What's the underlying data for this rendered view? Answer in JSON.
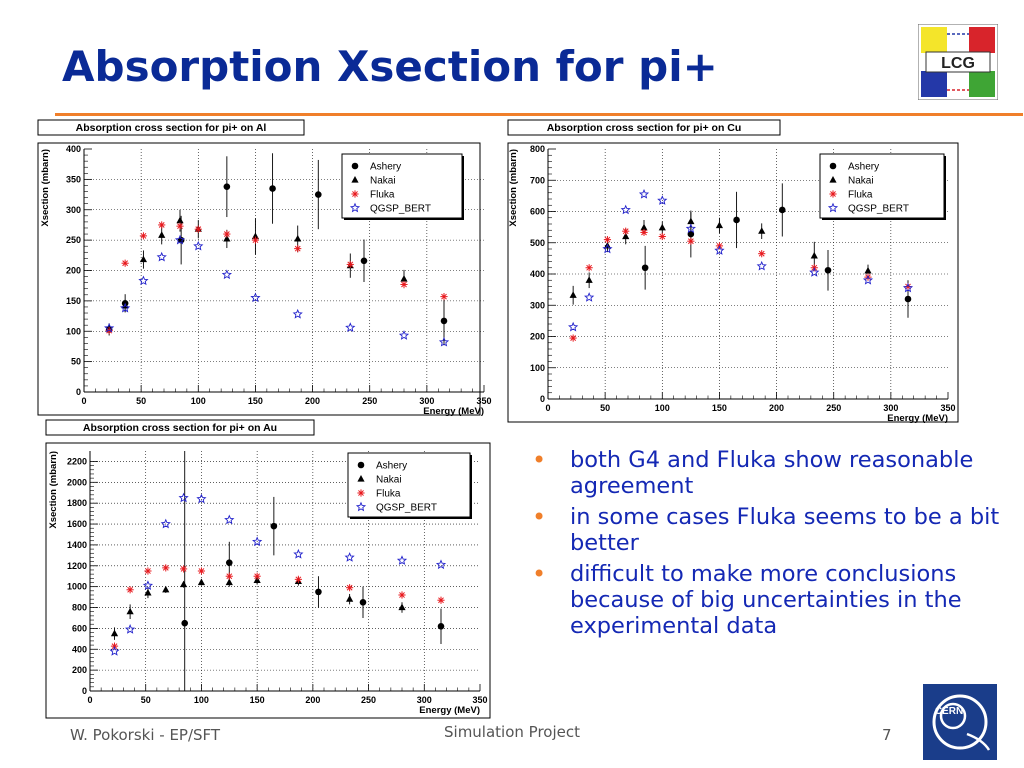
{
  "slide": {
    "title": "Absorption Xsection for pi+",
    "bullets": [
      "both G4 and Fluka show reasonable agreement",
      "in some cases Fluka seems to be a bit better",
      "difficult to make more conclusions because of big uncertainties in the experimental data"
    ],
    "footer_left": "W. Pokorski - EP/SFT",
    "footer_center": "Simulation Project",
    "page_number": "7",
    "logo_text": "LCG",
    "cern_text": "CERN",
    "colors": {
      "title": "#0a2a96",
      "rule": "#f07f2a",
      "bullet_text": "#1428b4",
      "bullet_marker": "#f07f2a"
    }
  },
  "chart_data": [
    {
      "type": "scatter",
      "title": "Absorption cross section for pi+ on Al",
      "xlabel": "Energy (MeV)",
      "ylabel": "Xsection (mbarn)",
      "xlim": [
        0,
        350
      ],
      "ylim": [
        0,
        400
      ],
      "xticks": [
        0,
        50,
        100,
        150,
        200,
        250,
        300,
        350
      ],
      "yticks": [
        0,
        50,
        100,
        150,
        200,
        250,
        300,
        350,
        400
      ],
      "grid": true,
      "legend": "top-right",
      "series": [
        {
          "name": "Ashery",
          "marker": "circle",
          "color": "#000000",
          "points": [
            {
              "x": 22,
              "y": 103,
              "err": 10
            },
            {
              "x": 36,
              "y": 146,
              "err": 15
            },
            {
              "x": 85,
              "y": 250,
              "err": 40
            },
            {
              "x": 125,
              "y": 338,
              "err": 50
            },
            {
              "x": 165,
              "y": 335,
              "err": 58
            },
            {
              "x": 205,
              "y": 325,
              "err": 57
            },
            {
              "x": 245,
              "y": 216,
              "err": 35
            },
            {
              "x": 315,
              "y": 117,
              "err": 40
            }
          ]
        },
        {
          "name": "Nakai",
          "marker": "triangle",
          "color": "#000000",
          "points": [
            {
              "x": 36,
              "y": 142,
              "err": 10
            },
            {
              "x": 52,
              "y": 218,
              "err": 15
            },
            {
              "x": 68,
              "y": 258,
              "err": 15
            },
            {
              "x": 84,
              "y": 282,
              "err": 18
            },
            {
              "x": 100,
              "y": 268,
              "err": 15
            },
            {
              "x": 125,
              "y": 252,
              "err": 15
            },
            {
              "x": 150,
              "y": 256,
              "err": 30
            },
            {
              "x": 187,
              "y": 252,
              "err": 22
            },
            {
              "x": 233,
              "y": 208,
              "err": 20
            },
            {
              "x": 280,
              "y": 186,
              "err": 15
            }
          ]
        },
        {
          "name": "Fluka",
          "marker": "asterisk",
          "color": "#e8191e",
          "points": [
            {
              "x": 22,
              "y": 101
            },
            {
              "x": 36,
              "y": 212
            },
            {
              "x": 52,
              "y": 257
            },
            {
              "x": 68,
              "y": 275
            },
            {
              "x": 84,
              "y": 273
            },
            {
              "x": 100,
              "y": 268
            },
            {
              "x": 125,
              "y": 260
            },
            {
              "x": 150,
              "y": 250
            },
            {
              "x": 187,
              "y": 236
            },
            {
              "x": 233,
              "y": 210
            },
            {
              "x": 280,
              "y": 177
            },
            {
              "x": 315,
              "y": 157
            }
          ]
        },
        {
          "name": "QGSP_BERT",
          "marker": "star",
          "color": "#2222cc",
          "points": [
            {
              "x": 22,
              "y": 105
            },
            {
              "x": 36,
              "y": 138
            },
            {
              "x": 52,
              "y": 183
            },
            {
              "x": 68,
              "y": 222
            },
            {
              "x": 84,
              "y": 250
            },
            {
              "x": 100,
              "y": 240
            },
            {
              "x": 125,
              "y": 193
            },
            {
              "x": 150,
              "y": 155
            },
            {
              "x": 187,
              "y": 128
            },
            {
              "x": 233,
              "y": 106
            },
            {
              "x": 280,
              "y": 93
            },
            {
              "x": 315,
              "y": 82
            }
          ]
        }
      ]
    },
    {
      "type": "scatter",
      "title": "Absorption cross section for pi+ on Cu",
      "xlabel": "Energy (MeV)",
      "ylabel": "Xsection (mbarn)",
      "xlim": [
        0,
        350
      ],
      "ylim": [
        0,
        800
      ],
      "xticks": [
        0,
        50,
        100,
        150,
        200,
        250,
        300,
        350
      ],
      "yticks": [
        0,
        100,
        200,
        300,
        400,
        500,
        600,
        700,
        800
      ],
      "grid": true,
      "legend": "top-right",
      "series": [
        {
          "name": "Ashery",
          "marker": "circle",
          "color": "#000000",
          "points": [
            {
              "x": 85,
              "y": 420,
              "err": 70
            },
            {
              "x": 125,
              "y": 528,
              "err": 75
            },
            {
              "x": 165,
              "y": 573,
              "err": 90
            },
            {
              "x": 205,
              "y": 605,
              "err": 85
            },
            {
              "x": 245,
              "y": 412,
              "err": 65
            },
            {
              "x": 315,
              "y": 320,
              "err": 60
            }
          ]
        },
        {
          "name": "Nakai",
          "marker": "triangle",
          "color": "#000000",
          "points": [
            {
              "x": 22,
              "y": 332,
              "err": 30
            },
            {
              "x": 36,
              "y": 380,
              "err": 25
            },
            {
              "x": 52,
              "y": 490,
              "err": 20
            },
            {
              "x": 68,
              "y": 520,
              "err": 25
            },
            {
              "x": 84,
              "y": 548,
              "err": 25
            },
            {
              "x": 100,
              "y": 548,
              "err": 20
            },
            {
              "x": 125,
              "y": 568,
              "err": 30
            },
            {
              "x": 150,
              "y": 555,
              "err": 25
            },
            {
              "x": 187,
              "y": 537,
              "err": 25
            },
            {
              "x": 233,
              "y": 458,
              "err": 45
            },
            {
              "x": 280,
              "y": 410,
              "err": 20
            }
          ]
        },
        {
          "name": "Fluka",
          "marker": "asterisk",
          "color": "#e8191e",
          "points": [
            {
              "x": 22,
              "y": 195
            },
            {
              "x": 36,
              "y": 420
            },
            {
              "x": 52,
              "y": 510
            },
            {
              "x": 68,
              "y": 537
            },
            {
              "x": 84,
              "y": 533
            },
            {
              "x": 100,
              "y": 520
            },
            {
              "x": 125,
              "y": 505
            },
            {
              "x": 150,
              "y": 490
            },
            {
              "x": 187,
              "y": 465
            },
            {
              "x": 233,
              "y": 420
            },
            {
              "x": 280,
              "y": 390
            },
            {
              "x": 315,
              "y": 360
            }
          ]
        },
        {
          "name": "QGSP_BERT",
          "marker": "star",
          "color": "#2222cc",
          "points": [
            {
              "x": 22,
              "y": 230
            },
            {
              "x": 36,
              "y": 325
            },
            {
              "x": 52,
              "y": 480
            },
            {
              "x": 68,
              "y": 605
            },
            {
              "x": 84,
              "y": 655
            },
            {
              "x": 100,
              "y": 635
            },
            {
              "x": 125,
              "y": 545
            },
            {
              "x": 150,
              "y": 475
            },
            {
              "x": 187,
              "y": 425
            },
            {
              "x": 233,
              "y": 405
            },
            {
              "x": 280,
              "y": 380
            },
            {
              "x": 315,
              "y": 355
            }
          ]
        }
      ]
    },
    {
      "type": "scatter",
      "title": "Absorption cross section for pi+ on Au",
      "xlabel": "Energy (MeV)",
      "ylabel": "Xsection (mbarn)",
      "xlim": [
        0,
        350
      ],
      "ylim": [
        0,
        2300
      ],
      "xticks": [
        0,
        50,
        100,
        150,
        200,
        250,
        300,
        350
      ],
      "yticks": [
        0,
        200,
        400,
        600,
        800,
        1000,
        1200,
        1400,
        1600,
        1800,
        2000,
        2200
      ],
      "grid": true,
      "legend": "top-right",
      "series": [
        {
          "name": "Ashery",
          "marker": "circle",
          "color": "#000000",
          "points": [
            {
              "x": 85,
              "y": 650,
              "err": 1650
            },
            {
              "x": 125,
              "y": 1230,
              "err": 200
            },
            {
              "x": 165,
              "y": 1580,
              "err": 280
            },
            {
              "x": 205,
              "y": 950,
              "err": 150
            },
            {
              "x": 245,
              "y": 850,
              "err": 150
            },
            {
              "x": 315,
              "y": 620,
              "err": 170
            }
          ]
        },
        {
          "name": "Nakai",
          "marker": "triangle",
          "color": "#000000",
          "points": [
            {
              "x": 22,
              "y": 550,
              "err": 60
            },
            {
              "x": 36,
              "y": 760,
              "err": 70
            },
            {
              "x": 52,
              "y": 940,
              "err": 50
            },
            {
              "x": 68,
              "y": 970,
              "err": 30
            },
            {
              "x": 84,
              "y": 1020,
              "err": 30
            },
            {
              "x": 100,
              "y": 1040,
              "err": 30
            },
            {
              "x": 125,
              "y": 1040,
              "err": 40
            },
            {
              "x": 150,
              "y": 1060,
              "err": 40
            },
            {
              "x": 187,
              "y": 1050,
              "err": 40
            },
            {
              "x": 233,
              "y": 880,
              "err": 50
            },
            {
              "x": 280,
              "y": 800,
              "err": 50
            }
          ]
        },
        {
          "name": "Fluka",
          "marker": "asterisk",
          "color": "#e8191e",
          "points": [
            {
              "x": 22,
              "y": 430
            },
            {
              "x": 36,
              "y": 970
            },
            {
              "x": 52,
              "y": 1150
            },
            {
              "x": 68,
              "y": 1180
            },
            {
              "x": 84,
              "y": 1170
            },
            {
              "x": 100,
              "y": 1150
            },
            {
              "x": 125,
              "y": 1100
            },
            {
              "x": 150,
              "y": 1100
            },
            {
              "x": 187,
              "y": 1070
            },
            {
              "x": 233,
              "y": 990
            },
            {
              "x": 280,
              "y": 920
            },
            {
              "x": 315,
              "y": 870
            }
          ]
        },
        {
          "name": "QGSP_BERT",
          "marker": "star",
          "color": "#2222cc",
          "points": [
            {
              "x": 22,
              "y": 380
            },
            {
              "x": 36,
              "y": 590
            },
            {
              "x": 52,
              "y": 1010
            },
            {
              "x": 68,
              "y": 1600
            },
            {
              "x": 84,
              "y": 1850
            },
            {
              "x": 100,
              "y": 1840
            },
            {
              "x": 125,
              "y": 1640
            },
            {
              "x": 150,
              "y": 1430
            },
            {
              "x": 187,
              "y": 1310
            },
            {
              "x": 233,
              "y": 1280
            },
            {
              "x": 280,
              "y": 1250
            },
            {
              "x": 315,
              "y": 1210
            }
          ]
        }
      ]
    }
  ]
}
